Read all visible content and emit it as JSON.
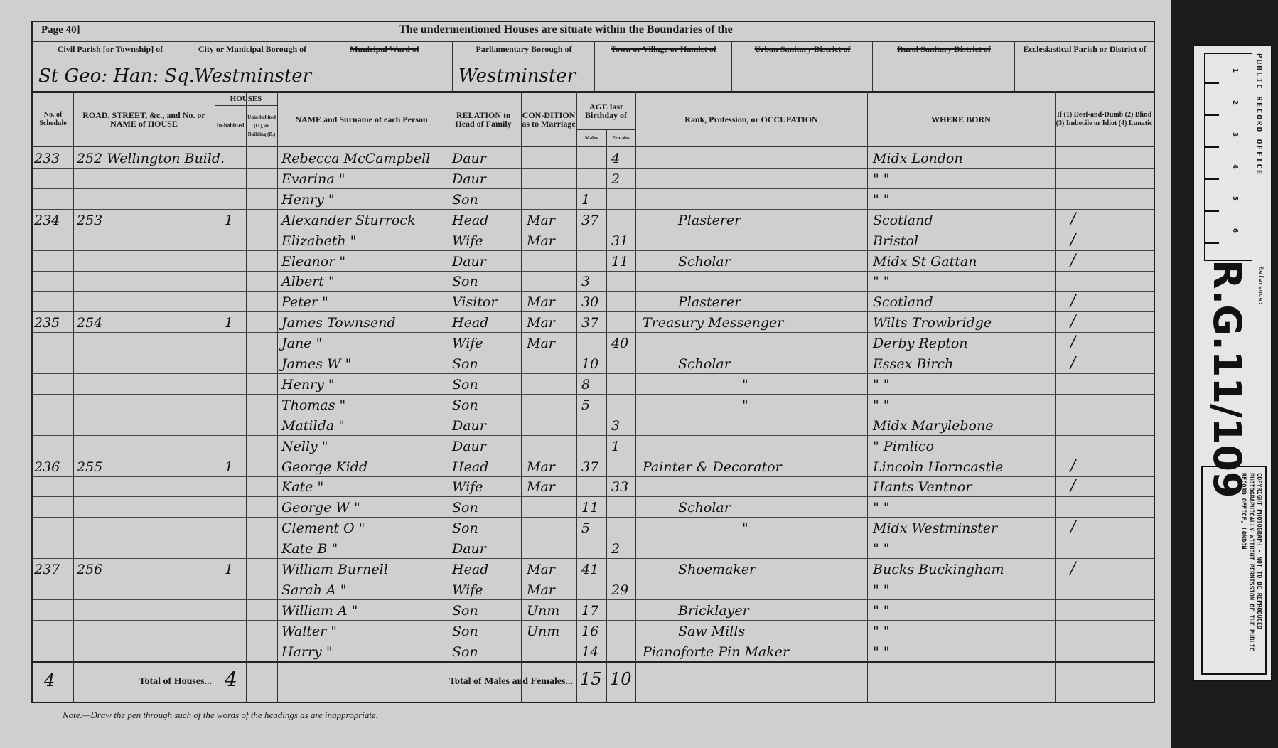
{
  "page": {
    "number": "Page 40]",
    "title": "The undermentioned Houses are situate within the Boundaries of the"
  },
  "districts": [
    {
      "label": "Civil Parish [or Township] of",
      "value": "St Geo: Han: Sq.",
      "struck": false
    },
    {
      "label": "City or Municipal Borough of",
      "value": "Westminster",
      "struck": false
    },
    {
      "label": "Municipal Ward of",
      "value": "",
      "struck": true
    },
    {
      "label": "Parliamentary Borough of",
      "value": "Westminster",
      "struck": false
    },
    {
      "label": "Town or Village or Hamlet of",
      "value": "",
      "struck": true
    },
    {
      "label": "Urban Sanitary District of",
      "value": "",
      "struck": true
    },
    {
      "label": "Rural Sanitary District of",
      "value": "",
      "struck": true
    },
    {
      "label": "Ecclesiastical Parish or District of",
      "value": "",
      "struck": false
    }
  ],
  "columns": {
    "schedule": "No. of Schedule",
    "road": "ROAD, STREET, &c., and No. or NAME of HOUSE",
    "houses": "HOUSES",
    "inhabited": "In-habit-ed",
    "uninhabited": "Unin-habited (U.), or Building (B.)",
    "name": "NAME and Surname of each Person",
    "relation": "RELATION to Head of Family",
    "condition": "CON-DITION as to Marriage",
    "age": "AGE last Birthday of",
    "males": "Males",
    "females": "Females",
    "occupation": "Rank, Profession, or OCCUPATION",
    "where_born": "WHERE BORN",
    "infirmity": "If (1) Deaf-and-Dumb (2) Blind (3) Imbecile or Idiot (4) Lunatic"
  },
  "rows": [
    {
      "schedule": "233",
      "road": "252 Wellington Build.",
      "inhabited": "",
      "name": "Rebecca McCampbell",
      "relation": "Daur",
      "condition": "",
      "male": "",
      "female": "4",
      "occupation": "",
      "born": "Midx   London"
    },
    {
      "schedule": "",
      "road": "",
      "inhabited": "",
      "name": "Evarina       \"",
      "relation": "Daur",
      "condition": "",
      "male": "",
      "female": "2",
      "occupation": "",
      "born": "\"          \""
    },
    {
      "schedule": "",
      "road": "",
      "inhabited": "",
      "name": "Henry          \"",
      "relation": "Son",
      "condition": "",
      "male": "1",
      "female": "",
      "occupation": "",
      "born": "\"          \""
    },
    {
      "schedule": "234",
      "road": "253",
      "inhabited": "1",
      "name": "Alexander Sturrock",
      "relation": "Head",
      "condition": "Mar",
      "male": "37",
      "female": "",
      "occupation": "Plasterer",
      "born": "Scotland"
    },
    {
      "schedule": "",
      "road": "",
      "inhabited": "",
      "name": "Elizabeth      \"",
      "relation": "Wife",
      "condition": "Mar",
      "male": "",
      "female": "31",
      "occupation": "",
      "born": "Bristol"
    },
    {
      "schedule": "",
      "road": "",
      "inhabited": "",
      "name": "Eleanor        \"",
      "relation": "Daur",
      "condition": "",
      "male": "",
      "female": "11",
      "occupation": "Scholar",
      "born": "Midx St Gattan"
    },
    {
      "schedule": "",
      "road": "",
      "inhabited": "",
      "name": "Albert          \"",
      "relation": "Son",
      "condition": "",
      "male": "3",
      "female": "",
      "occupation": "",
      "born": "\"          \""
    },
    {
      "schedule": "",
      "road": "",
      "inhabited": "",
      "name": "Peter           \"",
      "relation": "Visitor",
      "condition": "Mar",
      "male": "30",
      "female": "",
      "occupation": "Plasterer",
      "born": "Scotland"
    },
    {
      "schedule": "235",
      "road": "254",
      "inhabited": "1",
      "name": "James Townsend",
      "relation": "Head",
      "condition": "Mar",
      "male": "37",
      "female": "",
      "occupation": "Treasury Messenger",
      "born": "Wilts Trowbridge"
    },
    {
      "schedule": "",
      "road": "",
      "inhabited": "",
      "name": "Jane            \"",
      "relation": "Wife",
      "condition": "Mar",
      "male": "",
      "female": "40",
      "occupation": "",
      "born": "Derby  Repton"
    },
    {
      "schedule": "",
      "road": "",
      "inhabited": "",
      "name": "James W       \"",
      "relation": "Son",
      "condition": "",
      "male": "10",
      "female": "",
      "occupation": "Scholar",
      "born": "Essex   Birch"
    },
    {
      "schedule": "",
      "road": "",
      "inhabited": "",
      "name": "Henry          \"",
      "relation": "Son",
      "condition": "",
      "male": "8",
      "female": "",
      "occupation": "\"",
      "born": "\"          \""
    },
    {
      "schedule": "",
      "road": "",
      "inhabited": "",
      "name": "Thomas        \"",
      "relation": "Son",
      "condition": "",
      "male": "5",
      "female": "",
      "occupation": "\"",
      "born": "\"          \""
    },
    {
      "schedule": "",
      "road": "",
      "inhabited": "",
      "name": "Matilda        \"",
      "relation": "Daur",
      "condition": "",
      "male": "",
      "female": "3",
      "occupation": "",
      "born": "Midx  Marylebone"
    },
    {
      "schedule": "",
      "road": "",
      "inhabited": "",
      "name": "Nelly           \"",
      "relation": "Daur",
      "condition": "",
      "male": "",
      "female": "1",
      "occupation": "",
      "born": "\"      Pimlico"
    },
    {
      "schedule": "236",
      "road": "255",
      "inhabited": "1",
      "name": "George Kidd",
      "relation": "Head",
      "condition": "Mar",
      "male": "37",
      "female": "",
      "occupation": "Painter & Decorator",
      "born": "Lincoln Horncastle"
    },
    {
      "schedule": "",
      "road": "",
      "inhabited": "",
      "name": "Kate            \"",
      "relation": "Wife",
      "condition": "Mar",
      "male": "",
      "female": "33",
      "occupation": "",
      "born": "Hants  Ventnor"
    },
    {
      "schedule": "",
      "road": "",
      "inhabited": "",
      "name": "George W      \"",
      "relation": "Son",
      "condition": "",
      "male": "11",
      "female": "",
      "occupation": "Scholar",
      "born": "\"          \""
    },
    {
      "schedule": "",
      "road": "",
      "inhabited": "",
      "name": "Clement O     \"",
      "relation": "Son",
      "condition": "",
      "male": "5",
      "female": "",
      "occupation": "\"",
      "born": "Midx  Westminster"
    },
    {
      "schedule": "",
      "road": "",
      "inhabited": "",
      "name": "Kate B          \"",
      "relation": "Daur",
      "condition": "",
      "male": "",
      "female": "2",
      "occupation": "",
      "born": "\"          \""
    },
    {
      "schedule": "237",
      "road": "256",
      "inhabited": "1",
      "name": "William Burnell",
      "relation": "Head",
      "condition": "Mar",
      "male": "41",
      "female": "",
      "occupation": "Shoemaker",
      "born": "Bucks Buckingham"
    },
    {
      "schedule": "",
      "road": "",
      "inhabited": "",
      "name": "Sarah A        \"",
      "relation": "Wife",
      "condition": "Mar",
      "male": "",
      "female": "29",
      "occupation": "",
      "born": "\"          \""
    },
    {
      "schedule": "",
      "road": "",
      "inhabited": "",
      "name": "William A      \"",
      "relation": "Son",
      "condition": "Unm",
      "male": "17",
      "female": "",
      "occupation": "Bricklayer",
      "born": "\"          \""
    },
    {
      "schedule": "",
      "road": "",
      "inhabited": "",
      "name": "Walter          \"",
      "relation": "Son",
      "condition": "Unm",
      "male": "16",
      "female": "",
      "occupation": "Saw Mills",
      "born": "\"          \""
    },
    {
      "schedule": "",
      "road": "",
      "inhabited": "",
      "name": "Harry           \"",
      "relation": "Son",
      "condition": "",
      "male": "14",
      "female": "",
      "occupation": "Pianoforte Pin Maker",
      "born": "\"          \""
    }
  ],
  "totals": {
    "mark": "4",
    "houses_label": "Total of Houses...",
    "houses": "4",
    "persons_label": "Total of Males and Females...",
    "males": "15",
    "females": "10"
  },
  "note": "Note.—Draw the pen through such of the words of the headings as are inappropriate.",
  "side_card": {
    "office": "PUBLIC RECORD OFFICE",
    "reference_label": "Reference:",
    "reference": "R.G.11/109",
    "ruler": [
      "1",
      "2",
      "3",
      "4",
      "5",
      "6"
    ],
    "copyright": "COPYRIGHT PHOTOGRAPH - NOT TO BE REPRODUCED PHOTOGRAPHICALLY WITHOUT PERMISSION OF THE PUBLIC RECORD OFFICE, LONDON"
  },
  "colors": {
    "paper": "#cfcfcf",
    "ink": "#111111",
    "backing": "#1b1b1b",
    "card": "#e6e6e6"
  }
}
